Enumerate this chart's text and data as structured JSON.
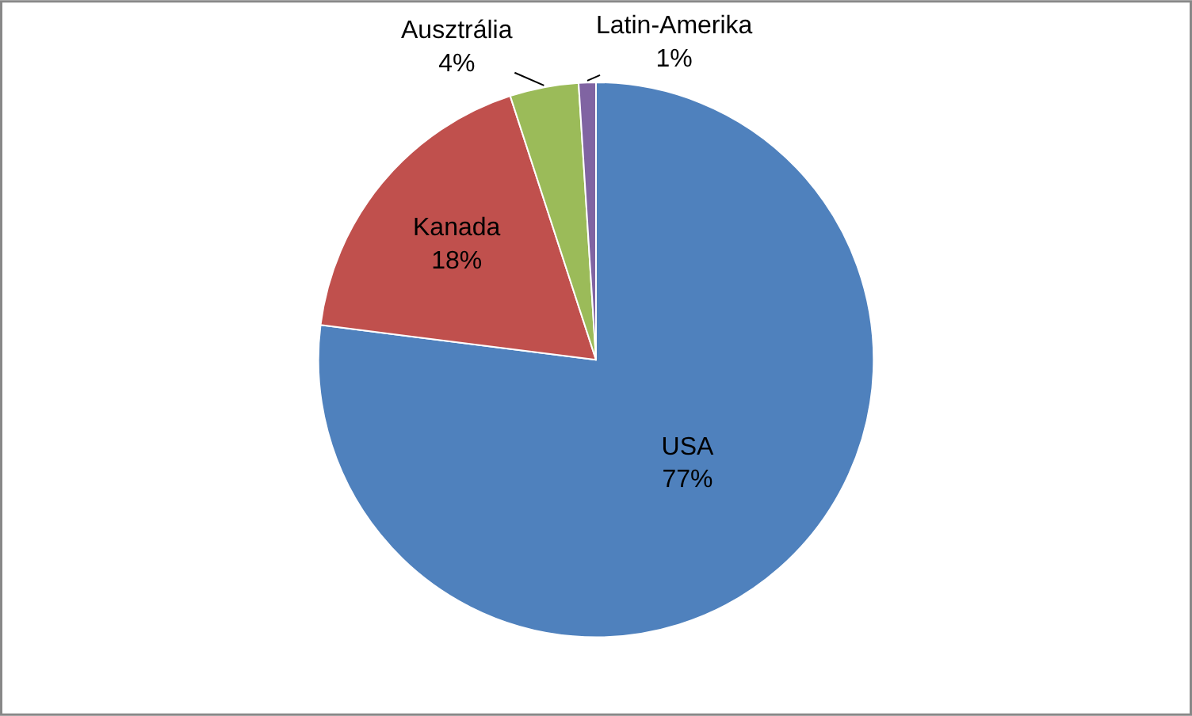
{
  "chart_data": {
    "type": "pie",
    "categories": [
      "USA",
      "Kanada",
      "Ausztrália",
      "Latin-Amerika"
    ],
    "values": [
      77,
      18,
      4,
      1
    ],
    "value_labels": [
      "77%",
      "18%",
      "4%",
      "1%"
    ],
    "colors": [
      "#4f81bd",
      "#c0504d",
      "#9bbb59",
      "#8064a2"
    ],
    "legend": false
  }
}
